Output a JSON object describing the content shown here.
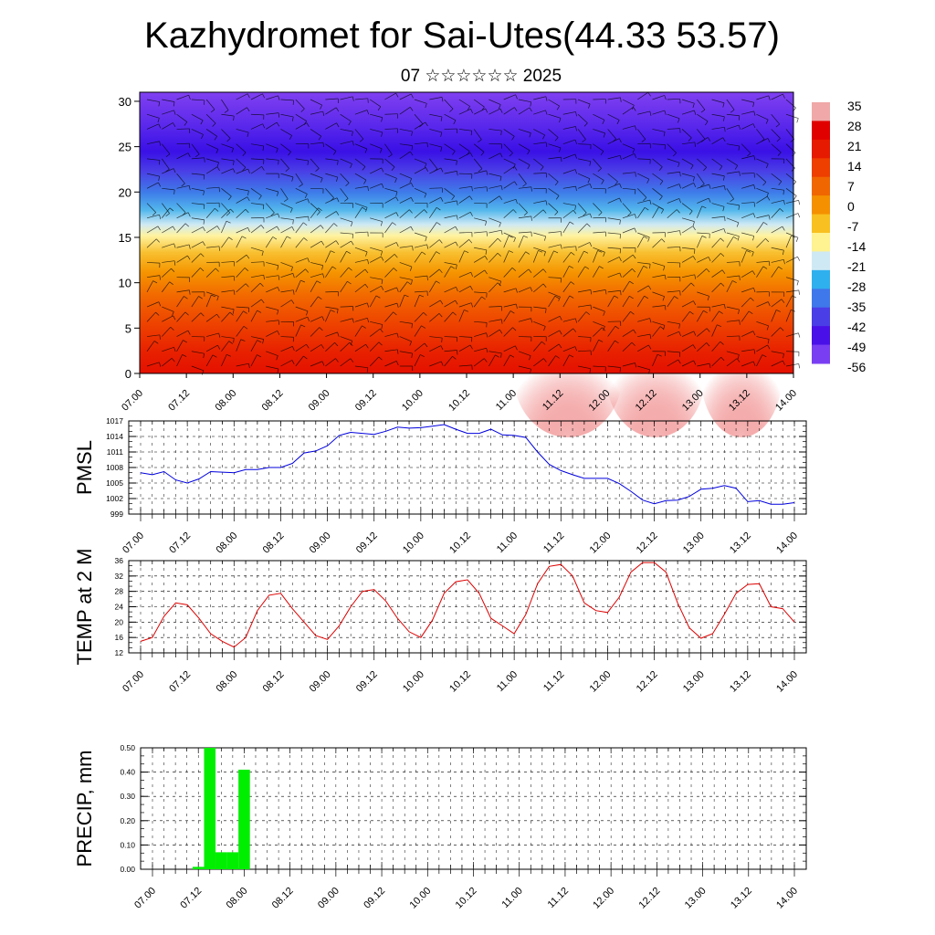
{
  "header": {
    "title": "Kazhydromet for Sai-Utes(44.33 53.57)",
    "subtitle": "07 ☆☆☆☆☆☆ 2025"
  },
  "colors": {
    "pressure_line": "#0000dd",
    "temp_line": "#dd0000",
    "precip_bar": "#00ee00",
    "frame": "#000000"
  },
  "chart_data": [
    {
      "id": "cross_section",
      "type": "heatmap",
      "title": "",
      "xlabel": "",
      "ylabel": "",
      "x_ticks": [
        "07.00",
        "07.12",
        "08.00",
        "08.12",
        "09.00",
        "09.12",
        "10.00",
        "10.12",
        "11.00",
        "11.12",
        "12.00",
        "12.12",
        "13.00",
        "13.12",
        "14.00"
      ],
      "y_ticks": [
        0,
        5,
        10,
        15,
        20,
        25,
        30
      ],
      "ylim": [
        0,
        31
      ],
      "colorbar": {
        "labels": [
          "35",
          "28",
          "21",
          "14",
          "7",
          "0",
          "-7",
          "-14",
          "-21",
          "-28",
          "-35",
          "-42",
          "-49",
          "-56"
        ],
        "colors": [
          "#f0a8a8",
          "#e00000",
          "#e61a00",
          "#ee3e00",
          "#f06600",
          "#f59000",
          "#f8c020",
          "#fff290",
          "#cfe9f4",
          "#2fb0ee",
          "#3f78ea",
          "#4a3ee6",
          "#4a10e8",
          "#7a3ef2"
        ]
      },
      "overlay": "wind barbs"
    },
    {
      "id": "pmsl",
      "type": "line",
      "ylabel": "PMSL",
      "ylim": [
        999,
        1017
      ],
      "y_ticks": [
        999,
        1002,
        1005,
        1008,
        1011,
        1014,
        1017
      ],
      "x_ticks": [
        "07.00",
        "07.12",
        "08.00",
        "08.12",
        "09.00",
        "09.12",
        "10.00",
        "10.12",
        "11.00",
        "11.12",
        "12.00",
        "12.12",
        "13.00",
        "13.12",
        "14.00"
      ],
      "x_step_hours": 3,
      "series": [
        {
          "values": [
            1007.0,
            1006.6,
            1007.2,
            1005.6,
            1005.0,
            1005.8,
            1007.2,
            1007.1,
            1007.0,
            1007.6,
            1007.6,
            1008.0,
            1008.0,
            1008.8,
            1010.8,
            1011.2,
            1012.2,
            1014.2,
            1014.8,
            1014.6,
            1014.4,
            1015.0,
            1015.8,
            1015.6,
            1015.7,
            1016.0,
            1016.3,
            1015.4,
            1014.6,
            1014.6,
            1015.4,
            1014.3,
            1014.2,
            1013.8,
            1011.0,
            1008.6,
            1007.4,
            1006.6,
            1005.9,
            1005.9,
            1005.9,
            1004.9,
            1003.4,
            1001.7,
            1001.0,
            1001.6,
            1001.7,
            1002.4,
            1003.8,
            1004.0,
            1004.5,
            1004.0,
            1001.4,
            1001.6,
            1000.9,
            1000.9,
            1001.2
          ]
        }
      ]
    },
    {
      "id": "temp",
      "type": "line",
      "ylabel": "TEMP at 2 M",
      "ylim": [
        12,
        36
      ],
      "y_ticks": [
        12,
        16,
        20,
        24,
        28,
        32,
        36
      ],
      "x_ticks": [
        "07.00",
        "07.12",
        "08.00",
        "08.12",
        "09.00",
        "09.12",
        "10.00",
        "10.12",
        "11.00",
        "11.12",
        "12.00",
        "12.12",
        "13.00",
        "13.12",
        "14.00"
      ],
      "x_step_hours": 3,
      "series": [
        {
          "values": [
            15.0,
            16.0,
            21.5,
            25.0,
            24.5,
            21.0,
            17.0,
            15.0,
            13.5,
            16.0,
            23.0,
            27.0,
            27.5,
            23.5,
            20.0,
            16.5,
            15.5,
            19.0,
            24.0,
            28.0,
            28.5,
            25.5,
            21.0,
            17.5,
            16.0,
            20.5,
            27.5,
            30.5,
            31.0,
            27.5,
            21.0,
            19.0,
            17.0,
            22.0,
            30.0,
            34.5,
            35.0,
            32.0,
            25.0,
            23.0,
            22.5,
            26.5,
            33.0,
            35.5,
            35.5,
            33.0,
            25.0,
            18.5,
            15.8,
            17.0,
            22.0,
            27.5,
            29.8,
            30.0,
            24.0,
            23.5,
            20.0
          ]
        }
      ]
    },
    {
      "id": "precip",
      "type": "bar",
      "ylabel": "PRECIP, mm",
      "ylim": [
        0,
        0.5
      ],
      "y_tick_labels": [
        "0.00",
        "0.10",
        "0.20",
        "0.30",
        "0.40",
        "0.50"
      ],
      "x_ticks": [
        "07.00",
        "07.12",
        "08.00",
        "08.12",
        "09.00",
        "09.12",
        "10.00",
        "10.12",
        "11.00",
        "11.12",
        "12.00",
        "12.12",
        "13.00",
        "13.12",
        "14.00"
      ],
      "x_step_hours": 3,
      "series": [
        {
          "values": [
            0,
            0,
            0,
            0,
            0.01,
            0.5,
            0.07,
            0.07,
            0.41,
            0,
            0,
            0,
            0,
            0,
            0,
            0,
            0,
            0,
            0,
            0,
            0,
            0,
            0,
            0,
            0,
            0,
            0,
            0,
            0,
            0,
            0,
            0,
            0,
            0,
            0,
            0,
            0,
            0,
            0,
            0,
            0,
            0,
            0,
            0,
            0,
            0,
            0,
            0,
            0,
            0,
            0,
            0,
            0,
            0,
            0,
            0,
            0
          ]
        }
      ]
    }
  ]
}
